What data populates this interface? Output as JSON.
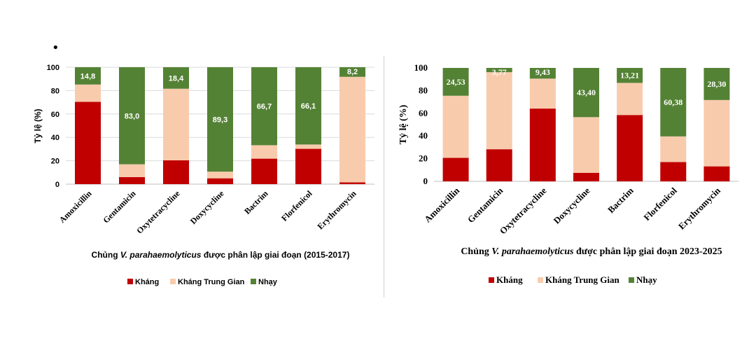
{
  "bullet": "•",
  "chart_data": [
    {
      "type": "bar",
      "stacked": true,
      "categories": [
        "Amoxicillin",
        "Gentamicin",
        "Oxytetracycline",
        "Doxycycline",
        "Bactrim",
        "Florfenicol",
        "Erythromycin"
      ],
      "series": [
        {
          "name": "Kháng",
          "color": "#c00000",
          "values": [
            70.4,
            6.0,
            20.4,
            5.0,
            21.8,
            30.2,
            1.5
          ]
        },
        {
          "name": "Kháng Trung Gian",
          "color": "#f8cbad",
          "values": [
            14.8,
            11.0,
            61.2,
            5.7,
            11.5,
            3.7,
            90.3
          ]
        },
        {
          "name": "Nhạy",
          "color": "#548235",
          "values": [
            14.8,
            83.0,
            18.4,
            89.3,
            66.7,
            66.1,
            8.2
          ]
        }
      ],
      "data_labels": [
        "14,8",
        "83,0",
        "18,4",
        "89,3",
        "66,7",
        "66,1",
        "8,2"
      ],
      "ylabel": "Tỷ lệ (%)",
      "ylim": [
        0,
        100
      ],
      "yticks": [
        "0",
        "20",
        "40",
        "60",
        "80",
        "100"
      ],
      "gridlines": true,
      "title_parts": [
        "Chủng ",
        "V. parahaemolyticus",
        "  được phân lập giai đoạn ",
        "(2015-2017)"
      ],
      "legend_position": "bottom"
    },
    {
      "type": "bar",
      "stacked": true,
      "categories": [
        "Amoxicillin",
        "Gentamicin",
        "Oxytetracycline",
        "Doxycycline",
        "Bactrim",
        "Florfenicol",
        "Erythromycin"
      ],
      "series": [
        {
          "name": "Kháng",
          "color": "#c00000",
          "values": [
            20.75,
            28.3,
            64.15,
            7.55,
            58.49,
            16.98,
            13.21
          ]
        },
        {
          "name": "Kháng Trung Gian",
          "color": "#f8cbad",
          "values": [
            54.72,
            67.93,
            26.42,
            49.05,
            28.3,
            22.64,
            58.49
          ]
        },
        {
          "name": "Nhạy",
          "color": "#548235",
          "values": [
            24.53,
            3.77,
            9.43,
            43.4,
            13.21,
            60.38,
            28.3
          ]
        }
      ],
      "data_labels": [
        "24,53",
        "3,77",
        "9,43",
        "43,40",
        "13,21",
        "60,38",
        "28,30"
      ],
      "ylabel": "Tỷ lệ (%)",
      "ylim": [
        0,
        100
      ],
      "yticks": [
        "0",
        "20",
        "40",
        "60",
        "80",
        "100"
      ],
      "gridlines": false,
      "title_parts": [
        "Chủng ",
        "V. parahaemolyticus",
        " được phân lập giai đoạn 2023-2025"
      ],
      "legend_position": "bottom"
    }
  ]
}
